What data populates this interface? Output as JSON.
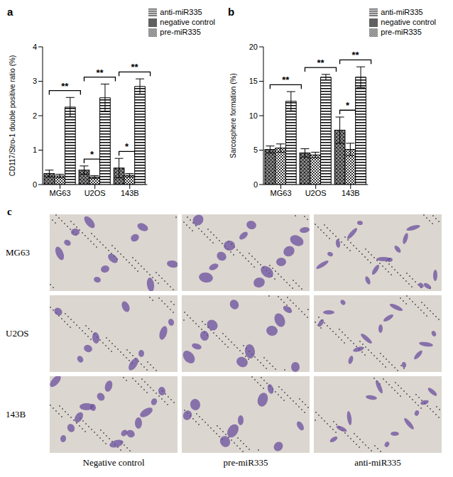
{
  "chart_data": [
    {
      "type": "bar",
      "title": "a",
      "ylabel": "CD117/Stro-1 double positive ratio (%)",
      "categories": [
        "MG63",
        "U2OS",
        "143B"
      ],
      "series": [
        {
          "name": "negative control",
          "color": "#8c8c8c",
          "values": [
            0.32,
            0.42,
            0.48
          ],
          "errors": [
            0.1,
            0.12,
            0.28
          ]
        },
        {
          "name": "pre-miR335",
          "color": "#303030",
          "values": [
            0.25,
            0.22,
            0.27
          ],
          "errors": [
            0.05,
            0.04,
            0.05
          ]
        },
        {
          "name": "anti-miR335",
          "color": "#000000",
          "values": [
            2.25,
            2.52,
            2.85
          ],
          "errors": [
            0.28,
            0.4,
            0.22
          ]
        }
      ],
      "ylim": [
        0,
        4
      ],
      "yticks": [
        0,
        1,
        2,
        3,
        4
      ],
      "grid": false,
      "legend": "upper right",
      "annotations": [
        {
          "category": "MG63",
          "from": "negative control",
          "to": "anti-miR335",
          "text": "**"
        },
        {
          "category": "U2OS",
          "from": "negative control",
          "to": "pre-miR335",
          "text": "*"
        },
        {
          "category": "U2OS",
          "from": "negative control",
          "to": "anti-miR335",
          "text": "**"
        },
        {
          "category": "143B",
          "from": "negative control",
          "to": "pre-miR335",
          "text": "*"
        },
        {
          "category": "143B",
          "from": "negative control",
          "to": "anti-miR335",
          "text": "**"
        }
      ]
    },
    {
      "type": "bar",
      "title": "b",
      "ylabel": "Sarcosphere formation (%)",
      "categories": [
        "MG63",
        "U2OS",
        "143B"
      ],
      "series": [
        {
          "name": "negative control",
          "color": "#8c8c8c",
          "values": [
            5.1,
            4.6,
            7.9
          ],
          "errors": [
            0.5,
            0.6,
            1.9
          ]
        },
        {
          "name": "pre-miR335",
          "color": "#303030",
          "values": [
            5.3,
            4.3,
            5.1
          ],
          "errors": [
            0.6,
            0.4,
            0.9
          ]
        },
        {
          "name": "anti-miR335",
          "color": "#000000",
          "values": [
            12.1,
            15.6,
            15.6
          ],
          "errors": [
            1.4,
            0.4,
            1.5
          ]
        }
      ],
      "ylim": [
        0,
        20
      ],
      "yticks": [
        0,
        5,
        10,
        15,
        20
      ],
      "grid": false,
      "legend": "upper right",
      "annotations": [
        {
          "category": "MG63",
          "from": "negative control",
          "to": "anti-miR335",
          "text": "**"
        },
        {
          "category": "U2OS",
          "from": "negative control",
          "to": "anti-miR335",
          "text": "**"
        },
        {
          "category": "143B",
          "from": "negative control",
          "to": "pre-miR335",
          "text": "*"
        },
        {
          "category": "143B",
          "from": "negative control",
          "to": "anti-miR335",
          "text": "**"
        }
      ]
    }
  ],
  "panel_c": {
    "label": "c",
    "rows": [
      "MG63",
      "U2OS",
      "143B"
    ],
    "columns": [
      "Negative control",
      "pre-miR335",
      "anti-miR335"
    ]
  }
}
